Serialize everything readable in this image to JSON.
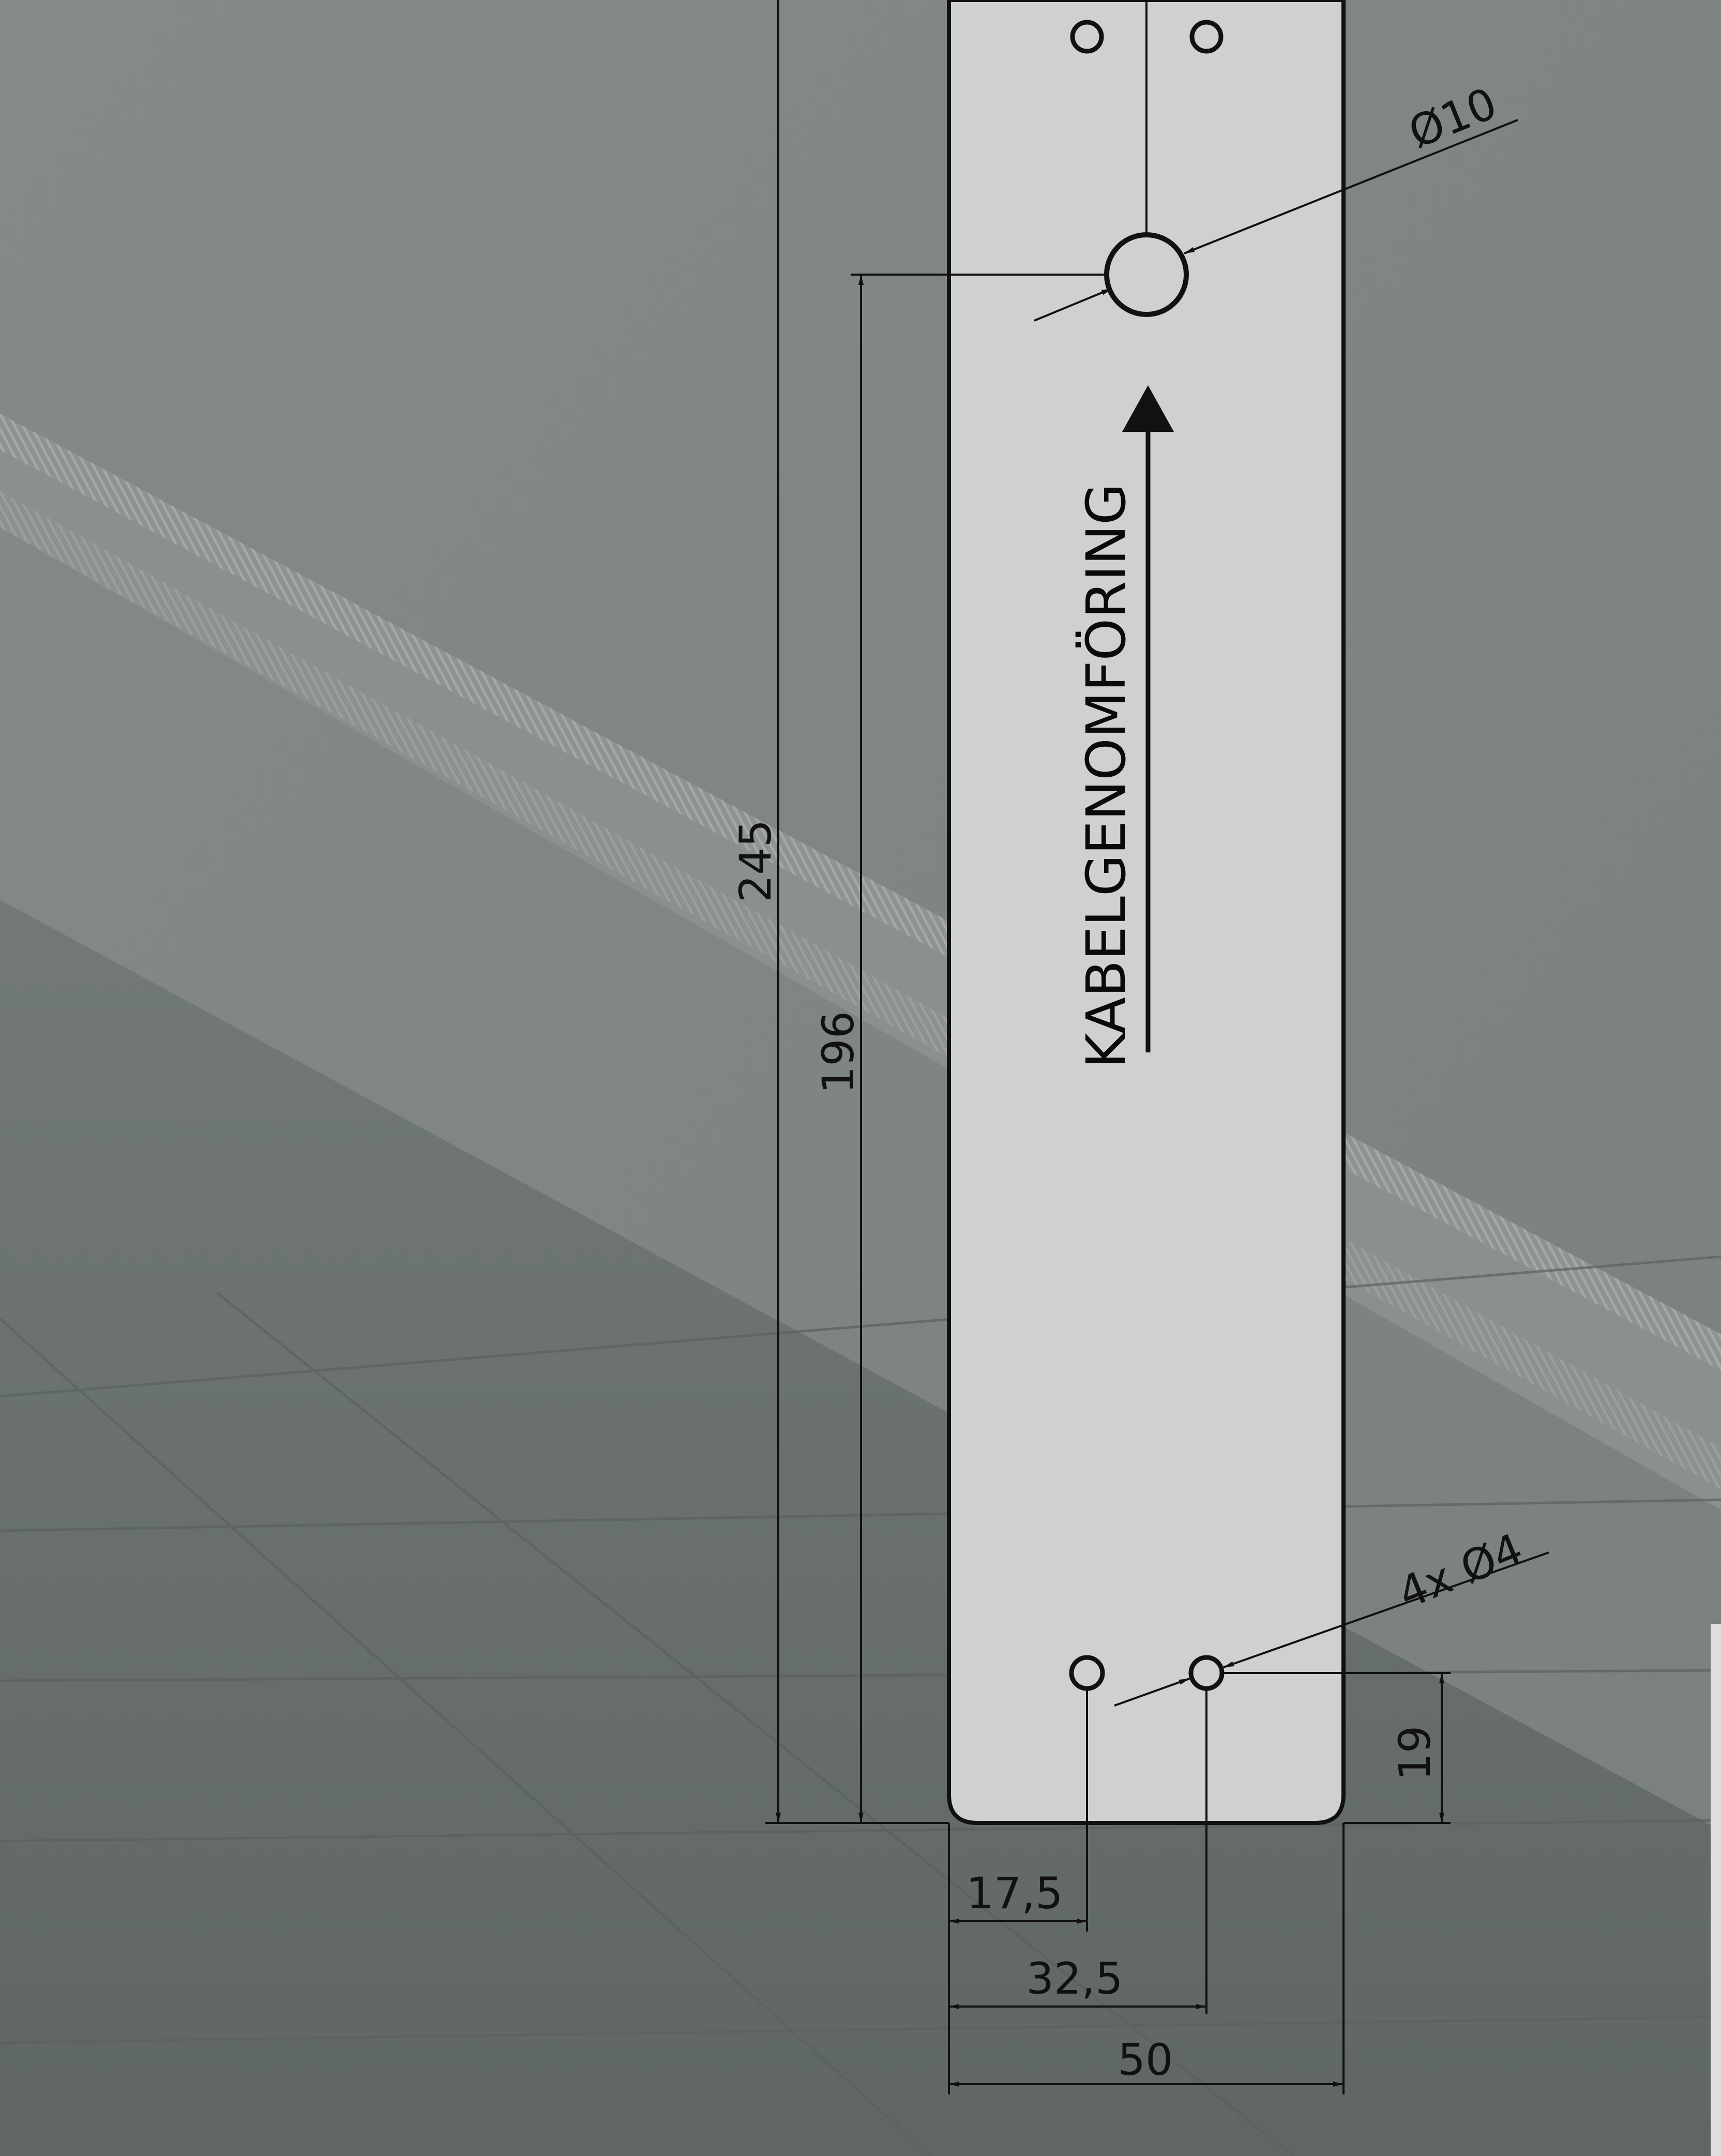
{
  "drawing": {
    "plate_label": "KABELGENOMFÖRING",
    "dimensions": {
      "total_height": "245",
      "hole_height": "196",
      "large_hole_diameter": "Ø10",
      "small_holes": "4x Ø4",
      "bottom_hole_offset": "19",
      "hole_left_offset": "17,5",
      "hole_right_offset": "32,5",
      "plate_width": "50"
    }
  },
  "colors": {
    "plate": "#cfd1d0",
    "wall": "#7f8584",
    "floor": "#686f6e",
    "line": "#111111"
  }
}
